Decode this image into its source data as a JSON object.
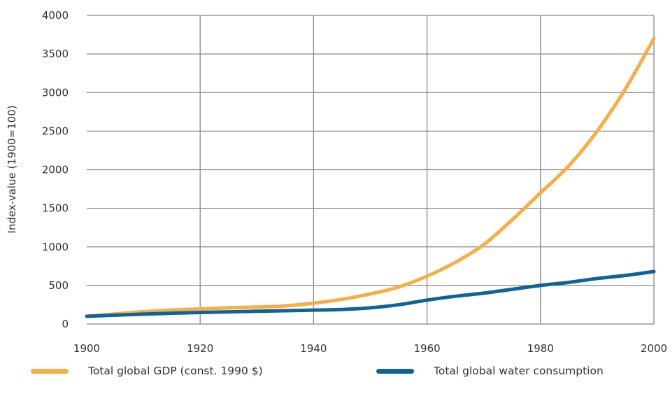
{
  "colors": {
    "gdp": "#F7AE45",
    "water": "#0F6497",
    "grid": "#888888",
    "text": "#333333"
  },
  "chart_data": {
    "type": "line",
    "ylabel": "Index-value (1900=100)",
    "xlabel": "",
    "xlim": [
      1900,
      2000
    ],
    "ylim": [
      0,
      4000
    ],
    "x_ticks": [
      1900,
      1920,
      1940,
      1960,
      1980,
      2000
    ],
    "y_ticks": [
      0,
      500,
      1000,
      1500,
      2000,
      2500,
      3000,
      3500,
      4000
    ],
    "grid": true,
    "legend_position": "bottom",
    "series": [
      {
        "name": "Total global GDP (const. 1990 $)",
        "color": "#F7AE45",
        "points": [
          [
            1900,
            100
          ],
          [
            1905,
            130
          ],
          [
            1910,
            160
          ],
          [
            1915,
            180
          ],
          [
            1920,
            195
          ],
          [
            1925,
            210
          ],
          [
            1930,
            220
          ],
          [
            1935,
            235
          ],
          [
            1940,
            270
          ],
          [
            1945,
            320
          ],
          [
            1950,
            390
          ],
          [
            1955,
            480
          ],
          [
            1960,
            620
          ],
          [
            1965,
            800
          ],
          [
            1970,
            1030
          ],
          [
            1975,
            1350
          ],
          [
            1980,
            1700
          ],
          [
            1985,
            2050
          ],
          [
            1990,
            2500
          ],
          [
            1995,
            3050
          ],
          [
            2000,
            3700
          ]
        ]
      },
      {
        "name": "Total global water consumption",
        "color": "#0F6497",
        "points": [
          [
            1900,
            100
          ],
          [
            1905,
            115
          ],
          [
            1910,
            128
          ],
          [
            1915,
            140
          ],
          [
            1920,
            150
          ],
          [
            1925,
            158
          ],
          [
            1930,
            165
          ],
          [
            1935,
            172
          ],
          [
            1940,
            180
          ],
          [
            1945,
            188
          ],
          [
            1950,
            210
          ],
          [
            1955,
            250
          ],
          [
            1960,
            310
          ],
          [
            1965,
            360
          ],
          [
            1970,
            400
          ],
          [
            1975,
            450
          ],
          [
            1980,
            500
          ],
          [
            1985,
            540
          ],
          [
            1990,
            590
          ],
          [
            1995,
            630
          ],
          [
            2000,
            680
          ]
        ]
      }
    ]
  }
}
